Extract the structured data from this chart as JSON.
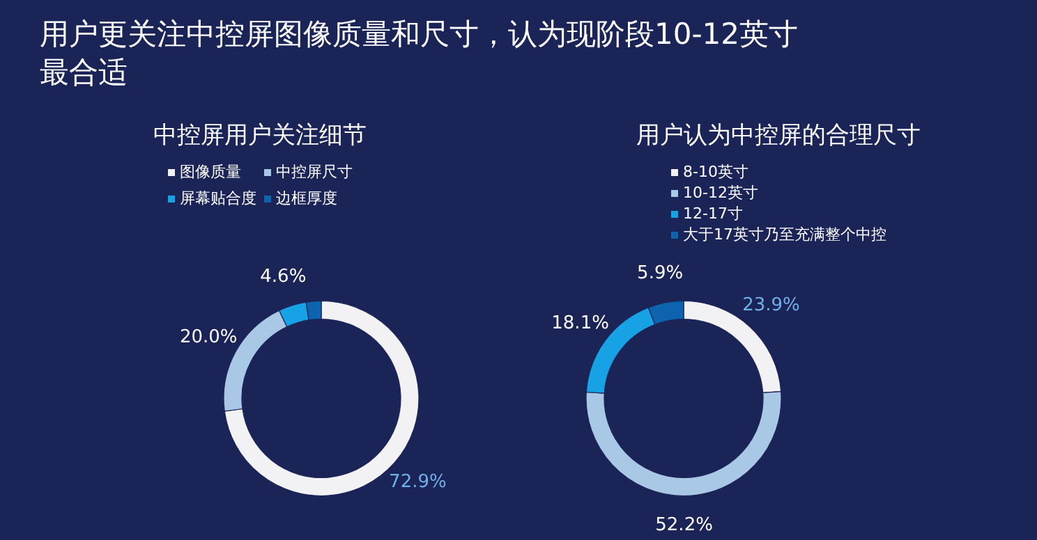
{
  "chart_data": [
    {
      "type": "other",
      "title": "用户更关注中控屏图像质量和尺寸，认为现阶段10-12英寸最合适"
    },
    {
      "type": "donut",
      "title": "中控屏用户关注细节",
      "categories": [
        "图像质量",
        "中控屏尺寸",
        "屏幕贴合度",
        "边框厚度"
      ],
      "values": [
        72.9,
        20.0,
        4.6,
        2.5
      ],
      "colors": [
        "#f2f2f4",
        "#a9c8e6",
        "#17a2e6",
        "#0d63ad"
      ],
      "value_labels": [
        "72.9%",
        "20.0%",
        "4.6%",
        null
      ],
      "legend": "top"
    },
    {
      "type": "donut",
      "title": "用户认为中控屏的合理尺寸",
      "categories": [
        "8-10英寸",
        "10-12英寸",
        "12-17寸",
        "大于17英寸乃至充满整个中控"
      ],
      "values": [
        23.9,
        52.2,
        18.1,
        5.9
      ],
      "colors": [
        "#f2f2f4",
        "#a9c8e6",
        "#17a2e6",
        "#0d63ad"
      ],
      "value_labels": [
        "23.9%",
        "52.2%",
        "18.1%",
        "5.9%"
      ],
      "legend": "top"
    }
  ]
}
